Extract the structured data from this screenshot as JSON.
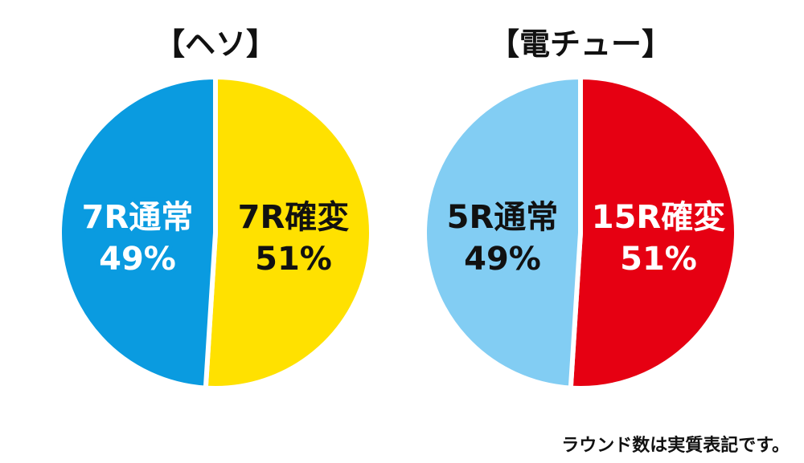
{
  "chart_data": [
    {
      "type": "pie",
      "title": "【ヘソ】",
      "slices": [
        {
          "category": "7R確変",
          "value": 51,
          "label": "51%",
          "color": "#FFE100",
          "label_color": "#111111",
          "label_stroke": "#FFE100"
        },
        {
          "category": "7R通常",
          "value": 49,
          "label": "49%",
          "color": "#0A9BE0",
          "label_color": "#FFFFFF",
          "label_stroke": "#0A9BE0"
        }
      ]
    },
    {
      "type": "pie",
      "title": "【電チュー】",
      "slices": [
        {
          "category": "15R確変",
          "value": 51,
          "label": "51%",
          "color": "#E60012",
          "label_color": "#FFFFFF",
          "label_stroke": "#E60012"
        },
        {
          "category": "5R通常",
          "value": 49,
          "label": "49%",
          "color": "#82CDF3",
          "label_color": "#111111",
          "label_stroke": "#82CDF3"
        }
      ]
    }
  ],
  "footnote": "ラウンド数は実質表記です。"
}
